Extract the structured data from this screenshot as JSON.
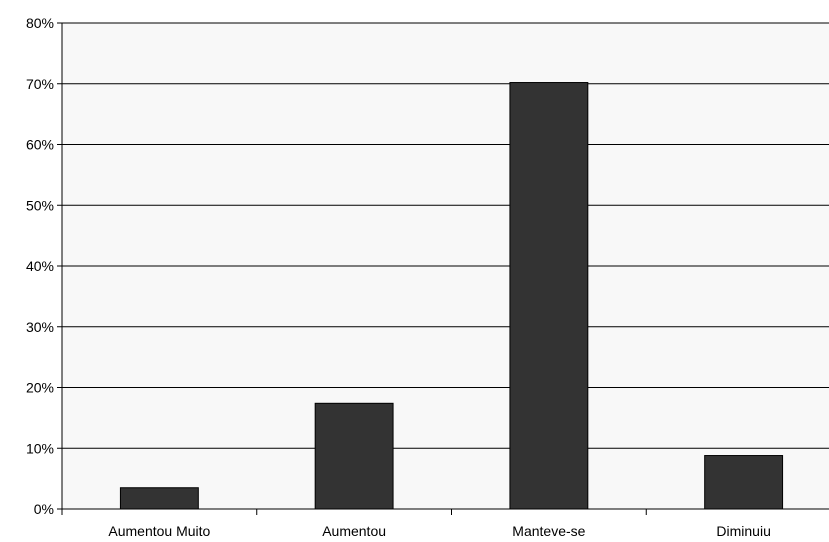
{
  "chart_data": {
    "type": "bar",
    "categories": [
      "Aumentou Muito",
      "Aumentou",
      "Manteve-se",
      "Diminuiu"
    ],
    "values": [
      3.5,
      17.4,
      70.2,
      8.8
    ],
    "ylim": [
      0,
      80
    ],
    "yticks": [
      0,
      10,
      20,
      30,
      40,
      50,
      60,
      70,
      80
    ],
    "ytick_labels": [
      "0%",
      "10%",
      "20%",
      "30%",
      "40%",
      "50%",
      "60%",
      "70%",
      "80%"
    ],
    "grid": true,
    "legend": "none",
    "colors": {
      "bar": "#333333",
      "plot_background": "#f8f8f8",
      "gridline": "#000000"
    }
  }
}
